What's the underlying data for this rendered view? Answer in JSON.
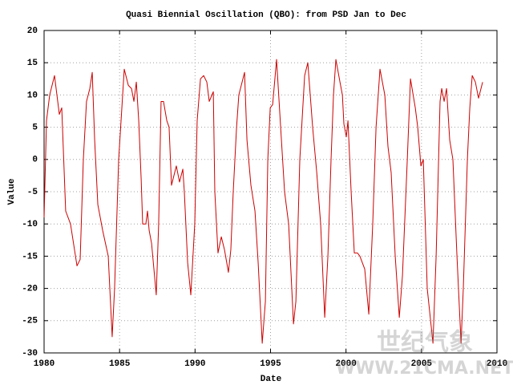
{
  "chart_data": {
    "type": "line",
    "title": "Quasi Biennial Oscillation (QBO): from PSD Jan to Dec",
    "x_label": "Date",
    "y_label": "Value",
    "x": [
      1980.0,
      1980.16,
      1980.37,
      1980.69,
      1981.01,
      1981.17,
      1981.43,
      1981.75,
      1982.18,
      1982.39,
      1982.6,
      1982.81,
      1983.03,
      1983.19,
      1983.35,
      1983.56,
      1983.88,
      1984.25,
      1984.51,
      1984.67,
      1984.94,
      1985.31,
      1985.58,
      1985.79,
      1985.95,
      1986.11,
      1986.27,
      1986.43,
      1986.53,
      1986.74,
      1986.85,
      1986.96,
      1987.12,
      1987.43,
      1987.59,
      1987.75,
      1987.91,
      1988.13,
      1988.28,
      1988.44,
      1988.76,
      1988.97,
      1989.19,
      1989.29,
      1989.51,
      1989.72,
      1989.98,
      1990.14,
      1990.36,
      1990.57,
      1990.78,
      1990.94,
      1991.21,
      1991.31,
      1991.52,
      1991.74,
      1991.95,
      1992.21,
      1992.37,
      1992.53,
      1992.75,
      1992.9,
      1993.28,
      1993.44,
      1993.7,
      1993.97,
      1994.18,
      1994.45,
      1994.66,
      1994.82,
      1994.98,
      1995.14,
      1995.4,
      1995.67,
      1995.93,
      1996.2,
      1996.52,
      1996.68,
      1996.94,
      1997.26,
      1997.47,
      1997.79,
      1998.06,
      1998.32,
      1998.59,
      1998.8,
      1999.01,
      1999.17,
      1999.33,
      1999.6,
      1999.76,
      1999.86,
      2000.02,
      2000.13,
      2000.34,
      2000.55,
      2000.76,
      2000.92,
      2001.24,
      2001.51,
      2001.77,
      2001.99,
      2002.25,
      2002.57,
      2002.78,
      2002.99,
      2003.26,
      2003.53,
      2003.74,
      2004.06,
      2004.27,
      2004.59,
      2004.75,
      2004.96,
      2005.12,
      2005.38,
      2005.76,
      2005.97,
      2006.23,
      2006.34,
      2006.5,
      2006.66,
      2006.87,
      2007.08,
      2007.35,
      2007.62,
      2007.77,
      2008.04,
      2008.2,
      2008.36,
      2008.57,
      2008.78,
      2009.05
    ],
    "series": [
      {
        "name": "QBO",
        "color": "#cc0000",
        "values": [
          -9,
          6,
          10,
          13,
          7,
          8,
          -8,
          -10,
          -16.5,
          -15.5,
          0,
          9,
          11,
          13.5,
          3,
          -7,
          -11,
          -15,
          -27.5,
          -20,
          0,
          14,
          11.5,
          11,
          9,
          12,
          6,
          -3,
          -10,
          -10,
          -8,
          -11,
          -13,
          -21,
          -10,
          9,
          9,
          6,
          5,
          -4,
          -1,
          -3.5,
          -1.5,
          -5,
          -16,
          -21,
          -10,
          6,
          12.5,
          13,
          12,
          9,
          10.5,
          -5,
          -14.5,
          -12,
          -14,
          -17.5,
          -14,
          -5,
          5,
          10,
          13.5,
          3,
          -4,
          -8,
          -16,
          -28.5,
          -22,
          0,
          8,
          8.5,
          15.5,
          5,
          -5,
          -10,
          -25.5,
          -22,
          0,
          13,
          15,
          5,
          -2,
          -10,
          -24.5,
          -15,
          0,
          10,
          15.5,
          12,
          10,
          5.5,
          3.5,
          6,
          -5,
          -14.5,
          -14.5,
          -15,
          -17,
          -24,
          -10,
          5,
          14,
          10,
          2,
          -2,
          -15,
          -24.5,
          -18,
          0,
          12.5,
          8,
          5,
          -1,
          0,
          -20,
          -28.5,
          -15,
          9,
          11,
          9,
          11,
          3,
          0,
          -15,
          -28.5,
          -20,
          0,
          8,
          13,
          12,
          9.5,
          12
        ]
      }
    ],
    "xlim": [
      1980,
      2010
    ],
    "xticks": [
      1980,
      1985,
      1990,
      1995,
      2000,
      2005,
      2010
    ],
    "ylim": [
      -30,
      20
    ],
    "yticks": [
      -30,
      -25,
      -20,
      -15,
      -10,
      -5,
      0,
      5,
      10,
      15,
      20
    ],
    "grid": true,
    "watermark": {
      "name": "世纪气象",
      "url": "WWW.21CMA.NET"
    }
  }
}
